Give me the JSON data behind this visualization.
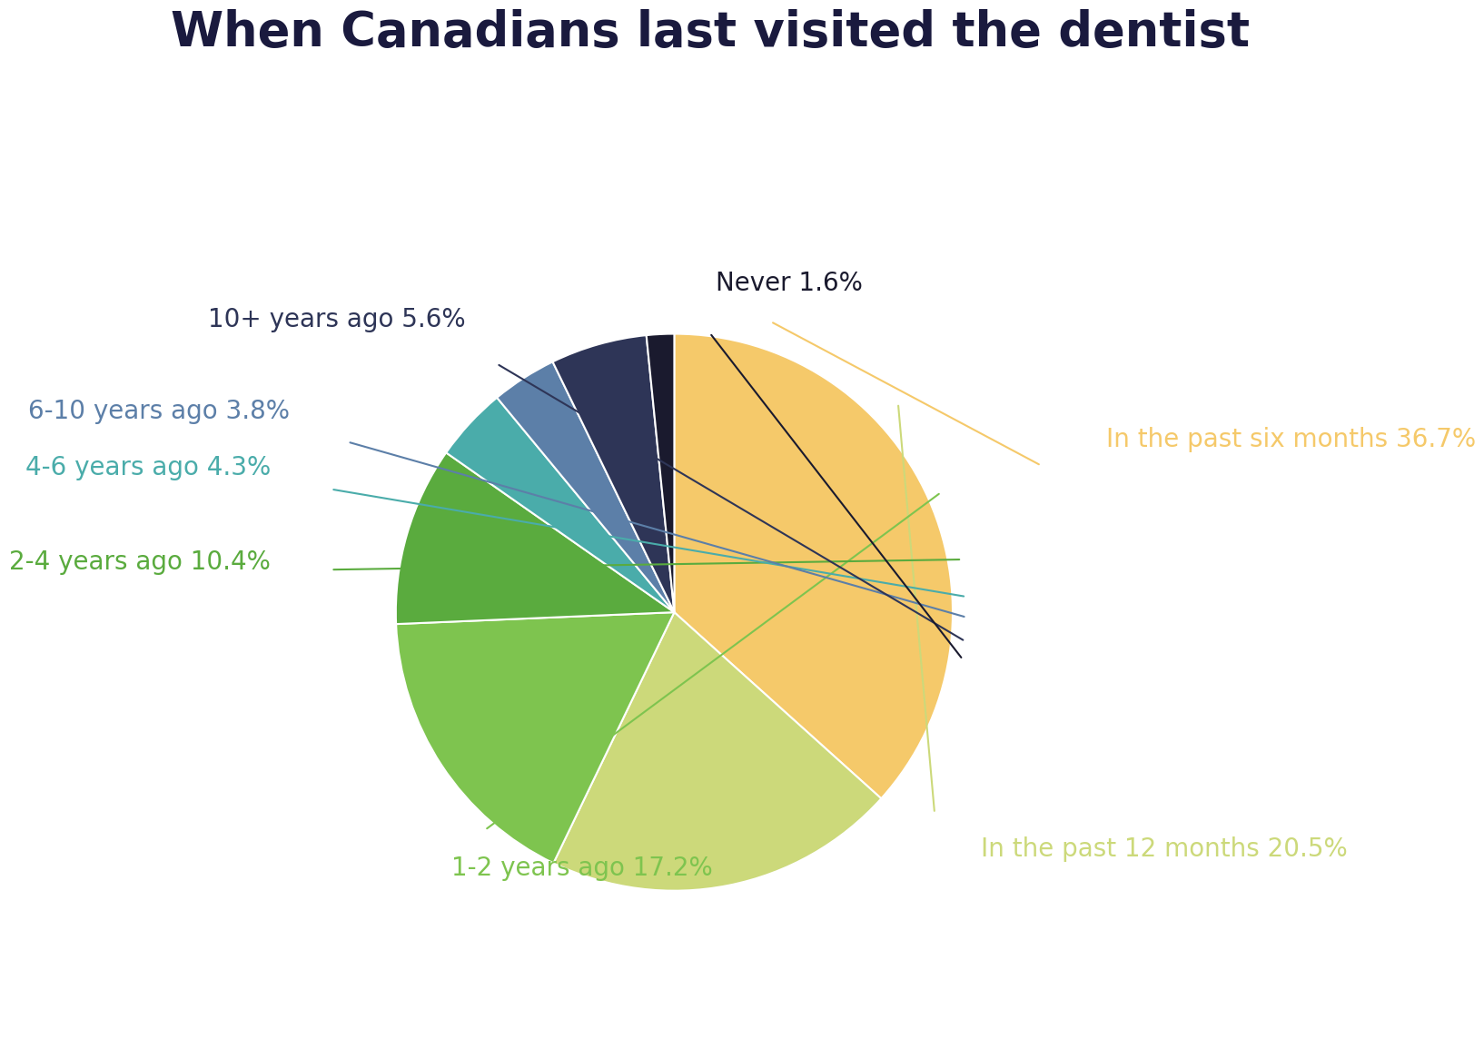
{
  "title": "When Canadians last visited the dentist",
  "title_color": "#1a1a3e",
  "title_fontsize": 38,
  "background_color": "#ffffff",
  "slices": [
    {
      "label": "In the past six months",
      "pct": 36.7,
      "color": "#f5c96a"
    },
    {
      "label": "In the past 12 months",
      "pct": 20.5,
      "color": "#ccd97a"
    },
    {
      "label": "1-2 years ago",
      "pct": 17.2,
      "color": "#7ec44f"
    },
    {
      "label": "2-4 years ago",
      "pct": 10.4,
      "color": "#5aab3e"
    },
    {
      "label": "4-6 years ago",
      "pct": 4.3,
      "color": "#4aacaa"
    },
    {
      "label": "6-10 years ago",
      "pct": 3.8,
      "color": "#5c7fa8"
    },
    {
      "label": "10+ years ago",
      "pct": 5.6,
      "color": "#2e3557"
    },
    {
      "label": "Never",
      "pct": 1.6,
      "color": "#1a1a2e"
    }
  ],
  "label_colors": [
    "#f5c96a",
    "#ccd97a",
    "#7ec44f",
    "#5aab3e",
    "#4aacaa",
    "#5c7fa8",
    "#2e3557",
    "#1a1a2e"
  ],
  "label_fontsize": 20,
  "wedge_edge_color": "#ffffff",
  "wedge_edge_width": 1.5
}
